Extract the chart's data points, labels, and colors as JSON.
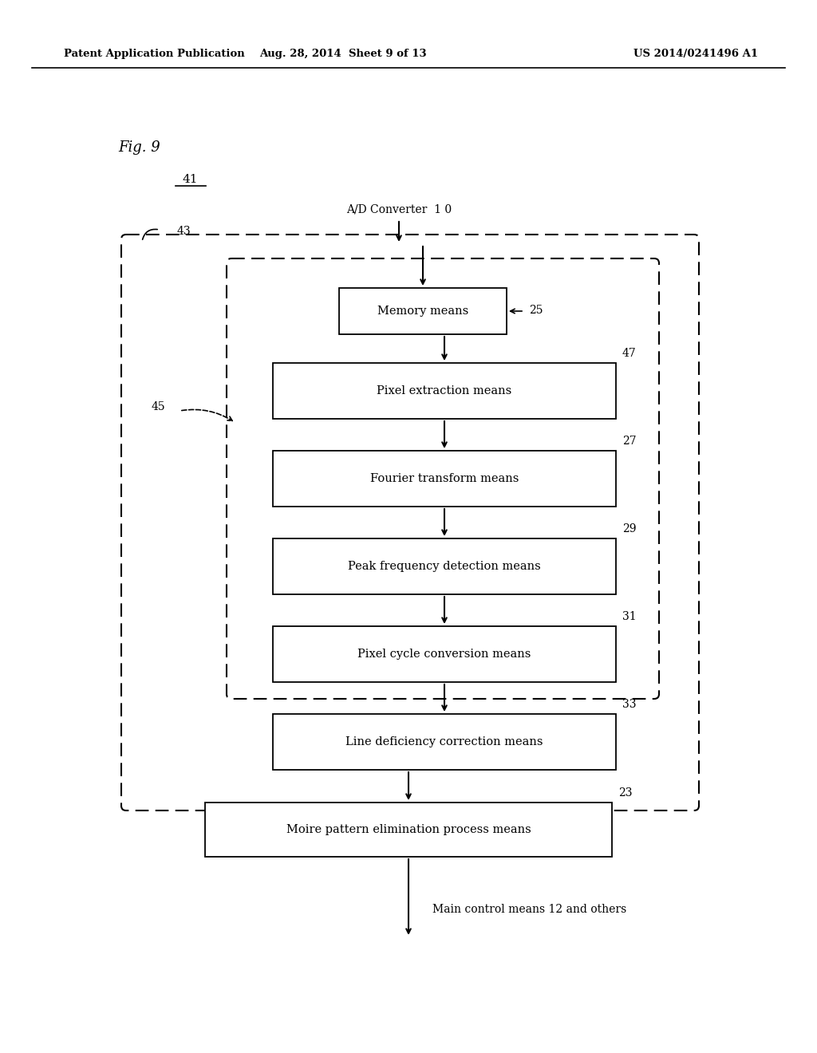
{
  "header_left": "Patent Application Publication",
  "header_mid": "Aug. 28, 2014  Sheet 9 of 13",
  "header_right": "US 2014/0241496 A1",
  "fig_label": "Fig. 9",
  "label_41": "41",
  "label_43": "43",
  "label_45": "45",
  "ad_converter_label": "A/D Converter  1 0",
  "main_control_label": "Main control means 12 and others",
  "bg_color": "#ffffff"
}
